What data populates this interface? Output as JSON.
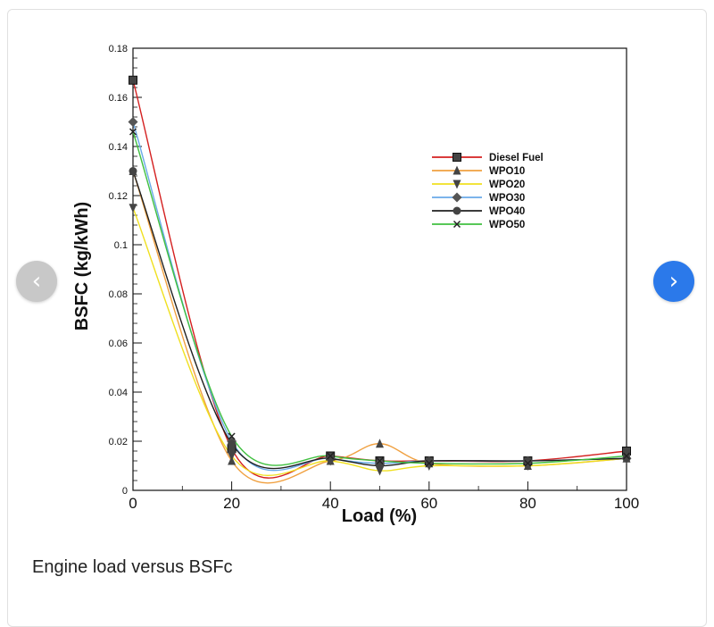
{
  "caption": "Engine load versus BSFc",
  "nav": {
    "prev_icon": "chevron-left-icon",
    "next_icon": "chevron-right-icon",
    "prev_glyph": "‹",
    "next_glyph": "›",
    "prev_color": "#c8c8c8",
    "next_color": "#2b79ea"
  },
  "chart_data": {
    "type": "line",
    "title": "",
    "xlabel": "Load (%)",
    "ylabel": "BSFC (kg/kWh)",
    "xlim": [
      0,
      100
    ],
    "ylim": [
      0,
      0.18
    ],
    "xticks": [
      "0",
      "20",
      "40",
      "60",
      "80",
      "100"
    ],
    "xtick_values": [
      0,
      20,
      40,
      60,
      80,
      100
    ],
    "yticks": [
      "0",
      "0.02",
      "0.04",
      "0.06",
      "0.08",
      "0.1",
      "0.12",
      "0.14",
      "0.16",
      "0.18"
    ],
    "ytick_values": [
      0,
      0.02,
      0.04,
      0.06,
      0.08,
      0.1,
      0.12,
      0.14,
      0.16,
      0.18
    ],
    "legend_position": "top-right",
    "grid": false,
    "x": [
      0,
      20,
      40,
      50,
      60,
      80,
      100
    ],
    "series": [
      {
        "name": "Diesel Fuel",
        "color": "#d42020",
        "marker": "square",
        "values": [
          0.167,
          0.017,
          0.014,
          0.012,
          0.012,
          0.012,
          0.016
        ]
      },
      {
        "name": "WPO10",
        "color": "#f0a040",
        "marker": "triangle-up",
        "values": [
          0.13,
          0.012,
          0.012,
          0.019,
          0.011,
          0.01,
          0.013
        ]
      },
      {
        "name": "WPO20",
        "color": "#f0e020",
        "marker": "triangle-down",
        "values": [
          0.115,
          0.014,
          0.012,
          0.008,
          0.01,
          0.01,
          0.013
        ]
      },
      {
        "name": "WPO30",
        "color": "#6aaae8",
        "marker": "diamond",
        "values": [
          0.15,
          0.02,
          0.013,
          0.011,
          0.012,
          0.012,
          0.013
        ]
      },
      {
        "name": "WPO40",
        "color": "#202020",
        "marker": "circle",
        "values": [
          0.13,
          0.019,
          0.013,
          0.01,
          0.012,
          0.012,
          0.013
        ]
      },
      {
        "name": "WPO50",
        "color": "#40c040",
        "marker": "x",
        "values": [
          0.146,
          0.022,
          0.014,
          0.012,
          0.011,
          0.011,
          0.014
        ]
      }
    ]
  }
}
